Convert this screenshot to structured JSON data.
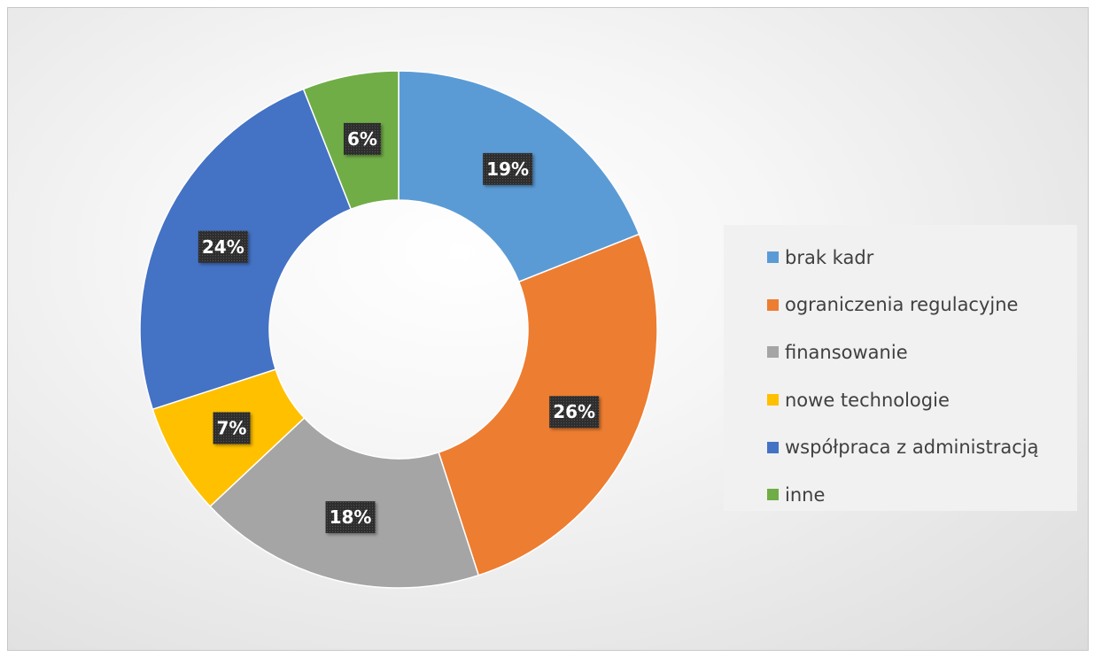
{
  "chart_data": {
    "type": "pie",
    "style": "donut",
    "categories": [
      "brak kadr",
      "ograniczenia regulacyjne",
      "finansowanie",
      "nowe technologie",
      "współpraca z administracją",
      "inne"
    ],
    "values": [
      19,
      26,
      18,
      7,
      24,
      6
    ],
    "data_labels": [
      "19%",
      "26%",
      "18%",
      "7%",
      "24%",
      "6%"
    ],
    "colors": [
      "#5B9BD5",
      "#ED7D31",
      "#A5A5A5",
      "#FFC000",
      "#4472C4",
      "#70AD47"
    ],
    "legend_position": "right",
    "title": ""
  }
}
